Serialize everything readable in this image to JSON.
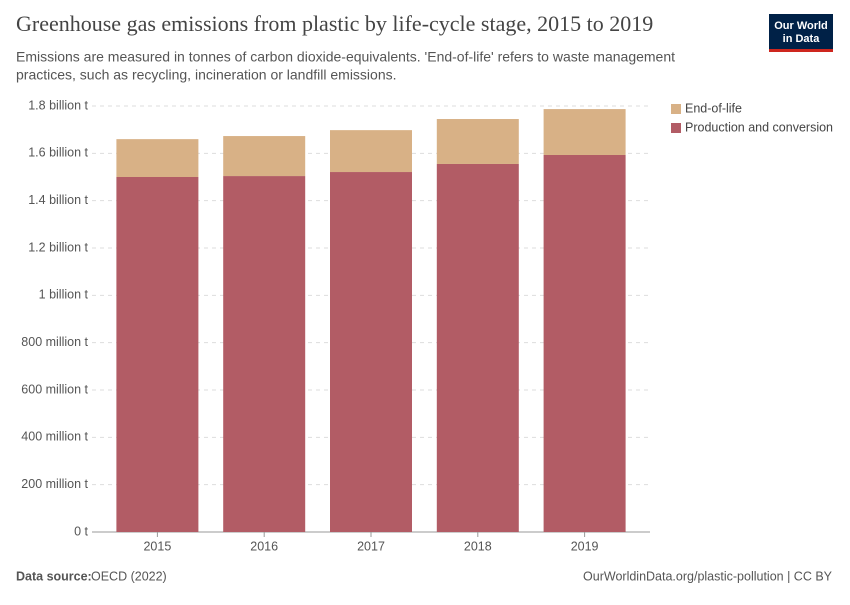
{
  "chart_data": {
    "type": "bar",
    "stacked": true,
    "title": "Greenhouse gas emissions from plastic by life-cycle stage, 2015 to 2019",
    "subtitle": [
      "Emissions are measured in tonnes of carbon dioxide-equivalents. 'End-of-life' refers to waste management",
      "practices, such as recycling, incineration or landfill emissions."
    ],
    "categories": [
      "2015",
      "2016",
      "2017",
      "2018",
      "2019"
    ],
    "series": [
      {
        "name": "Production and conversion",
        "color": "#b25c65",
        "values": [
          1500000000,
          1504000000,
          1521000000,
          1555000000,
          1593000000
        ]
      },
      {
        "name": "End-of-life",
        "color": "#d8b186",
        "values": [
          160000000,
          169000000,
          177000000,
          190000000,
          194000000
        ]
      }
    ],
    "ylim": [
      0,
      1800000000
    ],
    "yticks": [
      {
        "value": 0,
        "label": "0 t"
      },
      {
        "value": 200000000,
        "label": "200 million t"
      },
      {
        "value": 400000000,
        "label": "400 million t"
      },
      {
        "value": 600000000,
        "label": "600 million t"
      },
      {
        "value": 800000000,
        "label": "800 million t"
      },
      {
        "value": 1000000000,
        "label": "1 billion t"
      },
      {
        "value": 1200000000,
        "label": "1.2 billion t"
      },
      {
        "value": 1400000000,
        "label": "1.4 billion t"
      },
      {
        "value": 1600000000,
        "label": "1.6 billion t"
      },
      {
        "value": 1800000000,
        "label": "1.8 billion t"
      }
    ],
    "grid": true,
    "legend": "right",
    "source_label": "Data source:",
    "source": "OECD (2022)",
    "url": "OurWorldinData.org/plastic-pollution | CC BY",
    "logo": [
      "Our World",
      "in Data"
    ]
  }
}
